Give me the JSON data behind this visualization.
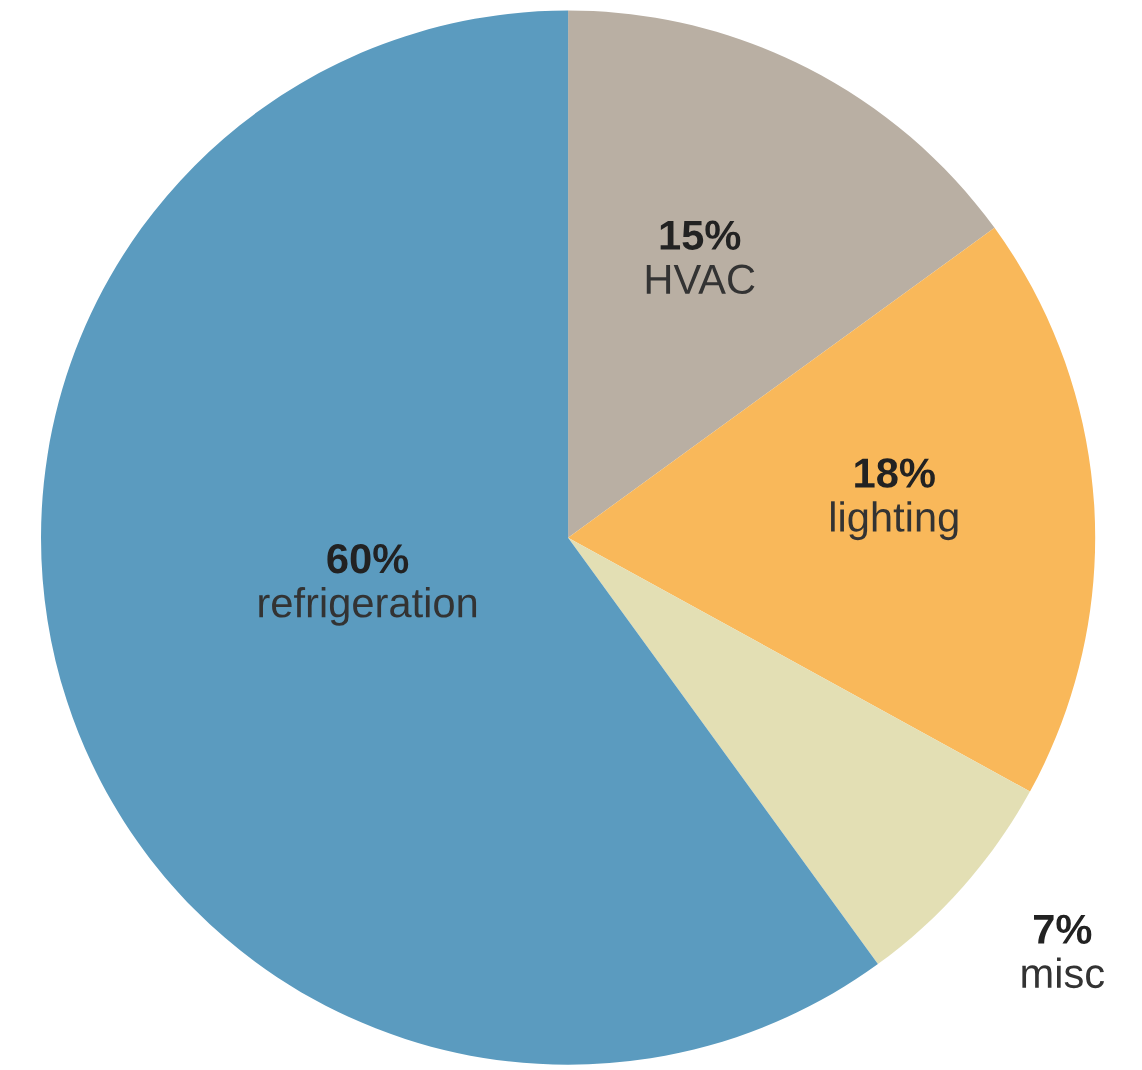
{
  "chart_data": {
    "type": "pie",
    "categories": [
      "HVAC",
      "lighting",
      "misc",
      "refrigeration"
    ],
    "values": [
      15,
      18,
      7,
      60
    ],
    "value_labels": [
      "15%",
      "18%",
      "7%",
      "60%"
    ],
    "colors": [
      "#b9afa3",
      "#f9b85a",
      "#e3dfb4",
      "#5b9bbf"
    ]
  }
}
